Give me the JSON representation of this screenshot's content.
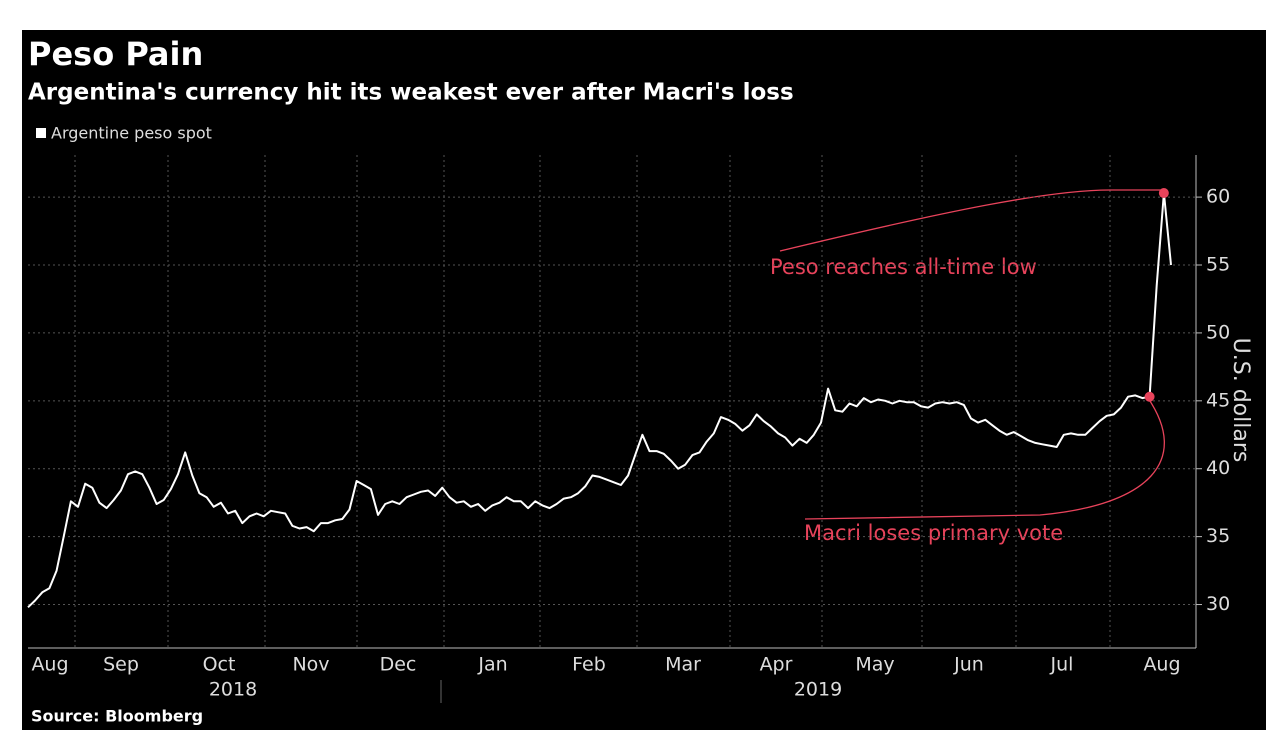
{
  "chart_data": {
    "type": "line",
    "title": "Peso Pain",
    "subtitle": "Argentina's currency hit its weakest ever after Macri's loss",
    "source": "Source: Bloomberg",
    "y_axis_label": "U.S. dollars",
    "x_labels": [
      "Aug",
      "Sep",
      "Oct",
      "Nov",
      "Dec",
      "Jan",
      "Feb",
      "Mar",
      "Apr",
      "May",
      "Jun",
      "Jul",
      "Aug"
    ],
    "years": [
      "2018",
      "2019"
    ],
    "ylim": [
      26.8,
      63.1
    ],
    "yticks": [
      30,
      35,
      40,
      45,
      50,
      55,
      60
    ],
    "grid": true,
    "series": [
      {
        "name": "Argentine peso spot",
        "color": "#ffffff",
        "values": [
          29.8,
          30.3,
          30.9,
          31.2,
          32.5,
          35.0,
          37.6,
          37.2,
          38.9,
          38.6,
          37.5,
          37.1,
          37.7,
          38.4,
          39.6,
          39.8,
          39.6,
          38.6,
          37.4,
          37.7,
          38.5,
          39.6,
          41.2,
          39.5,
          38.2,
          37.9,
          37.2,
          37.5,
          36.7,
          36.9,
          36.0,
          36.5,
          36.7,
          36.5,
          36.9,
          36.8,
          36.7,
          35.8,
          35.6,
          35.7,
          35.4,
          36.0,
          36.0,
          36.2,
          36.3,
          37.0,
          39.1,
          38.8,
          38.5,
          36.6,
          37.4,
          37.6,
          37.4,
          37.9,
          38.1,
          38.3,
          38.4,
          38.0,
          38.6,
          37.9,
          37.5,
          37.6,
          37.2,
          37.4,
          36.9,
          37.3,
          37.5,
          37.9,
          37.6,
          37.6,
          37.1,
          37.6,
          37.3,
          37.1,
          37.4,
          37.8,
          37.9,
          38.2,
          38.7,
          39.5,
          39.4,
          39.2,
          39.0,
          38.8,
          39.5,
          41.0,
          42.5,
          41.3,
          41.3,
          41.1,
          40.6,
          40.0,
          40.3,
          41.0,
          41.2,
          42.0,
          42.6,
          43.8,
          43.6,
          43.3,
          42.8,
          43.2,
          44.0,
          43.5,
          43.1,
          42.6,
          42.3,
          41.7,
          42.2,
          41.9,
          42.5,
          43.4,
          45.9,
          44.3,
          44.2,
          44.8,
          44.6,
          45.2,
          44.9,
          45.1,
          45.0,
          44.8,
          45.0,
          44.9,
          44.9,
          44.6,
          44.5,
          44.8,
          44.9,
          44.8,
          44.9,
          44.7,
          43.7,
          43.4,
          43.6,
          43.2,
          42.8,
          42.5,
          42.7,
          42.4,
          42.1,
          41.9,
          41.8,
          41.7,
          41.6,
          42.5,
          42.6,
          42.5,
          42.5,
          43.0,
          43.5,
          43.9,
          44.0,
          44.5,
          45.3,
          45.4,
          45.2,
          45.3,
          53.5,
          60.3,
          55.0
        ]
      }
    ],
    "annotations": [
      {
        "text": "Peso reaches all-time low",
        "color": "#e8435b"
      },
      {
        "text": "Macri loses primary vote",
        "color": "#e8435b"
      }
    ]
  }
}
